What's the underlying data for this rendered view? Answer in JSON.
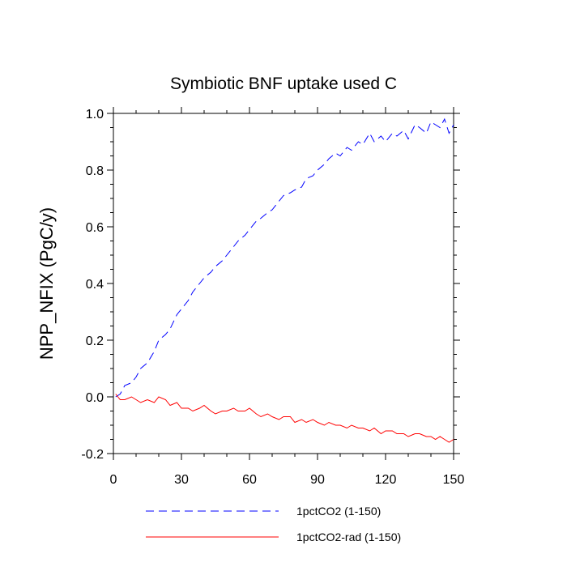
{
  "chart_data": {
    "type": "line",
    "title": "Symbiotic BNF uptake used C",
    "xlabel": "",
    "ylabel": "NPP_NFIX  (PgC/y)",
    "xlim": [
      0,
      150
    ],
    "ylim": [
      -0.2,
      1.0
    ],
    "x_ticks": [
      0,
      30,
      60,
      90,
      120,
      150
    ],
    "x_tick_labels": [
      "0",
      "30",
      "60",
      "90",
      "120",
      "150"
    ],
    "y_ticks": [
      -0.2,
      0.0,
      0.2,
      0.4,
      0.6,
      0.8,
      1.0
    ],
    "y_tick_labels": [
      "-0.2",
      "0.0",
      "0.2",
      "0.4",
      "0.6",
      "0.8",
      "1.0"
    ],
    "grid": false,
    "legend_position": "bottom",
    "series": [
      {
        "name": "1pctCO2 (1-150)",
        "color": "#0000ff",
        "dash": "dashed",
        "x": [
          1,
          3,
          5,
          8,
          10,
          12,
          15,
          18,
          20,
          23,
          25,
          28,
          30,
          33,
          35,
          38,
          40,
          43,
          45,
          48,
          50,
          53,
          55,
          58,
          60,
          63,
          65,
          68,
          70,
          73,
          75,
          78,
          80,
          83,
          85,
          88,
          90,
          93,
          95,
          98,
          100,
          103,
          105,
          108,
          110,
          113,
          115,
          118,
          120,
          123,
          125,
          128,
          130,
          133,
          135,
          138,
          140,
          142,
          144,
          146,
          148,
          150
        ],
        "y": [
          0.0,
          0.01,
          0.04,
          0.05,
          0.07,
          0.1,
          0.12,
          0.16,
          0.2,
          0.22,
          0.24,
          0.29,
          0.31,
          0.34,
          0.37,
          0.4,
          0.42,
          0.44,
          0.46,
          0.48,
          0.5,
          0.53,
          0.55,
          0.57,
          0.59,
          0.62,
          0.63,
          0.65,
          0.66,
          0.69,
          0.71,
          0.72,
          0.73,
          0.74,
          0.77,
          0.78,
          0.8,
          0.82,
          0.84,
          0.86,
          0.85,
          0.88,
          0.87,
          0.9,
          0.89,
          0.93,
          0.9,
          0.92,
          0.9,
          0.93,
          0.92,
          0.94,
          0.91,
          0.96,
          0.95,
          0.93,
          0.97,
          0.96,
          0.95,
          0.98,
          0.93,
          0.96
        ]
      },
      {
        "name": "1pctCO2-rad (1-150)",
        "color": "#ff0000",
        "dash": "solid",
        "x": [
          1,
          3,
          5,
          8,
          10,
          12,
          15,
          18,
          20,
          23,
          25,
          28,
          30,
          33,
          35,
          38,
          40,
          43,
          45,
          48,
          50,
          53,
          55,
          58,
          60,
          63,
          65,
          68,
          70,
          73,
          75,
          78,
          80,
          83,
          85,
          88,
          90,
          93,
          95,
          98,
          100,
          103,
          105,
          108,
          110,
          113,
          115,
          118,
          120,
          123,
          125,
          128,
          130,
          133,
          135,
          138,
          140,
          142,
          144,
          146,
          148,
          150
        ],
        "y": [
          0.01,
          -0.01,
          -0.01,
          0.0,
          -0.01,
          -0.02,
          -0.01,
          -0.02,
          0.0,
          -0.01,
          -0.03,
          -0.02,
          -0.04,
          -0.04,
          -0.05,
          -0.04,
          -0.03,
          -0.05,
          -0.06,
          -0.05,
          -0.05,
          -0.04,
          -0.05,
          -0.05,
          -0.04,
          -0.06,
          -0.07,
          -0.06,
          -0.07,
          -0.08,
          -0.07,
          -0.07,
          -0.09,
          -0.08,
          -0.09,
          -0.08,
          -0.09,
          -0.1,
          -0.09,
          -0.1,
          -0.1,
          -0.11,
          -0.1,
          -0.11,
          -0.11,
          -0.12,
          -0.11,
          -0.13,
          -0.12,
          -0.12,
          -0.13,
          -0.13,
          -0.14,
          -0.13,
          -0.13,
          -0.14,
          -0.14,
          -0.15,
          -0.14,
          -0.15,
          -0.16,
          -0.15
        ]
      }
    ]
  }
}
